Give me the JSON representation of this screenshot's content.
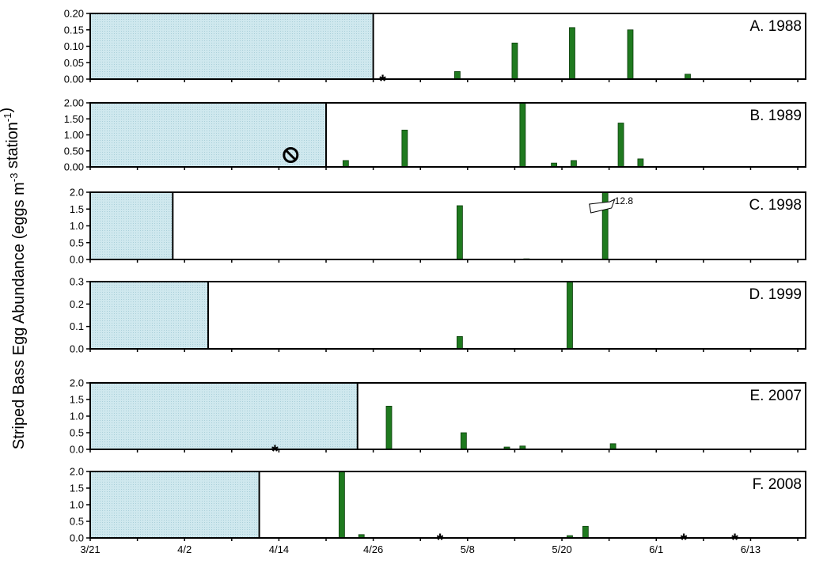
{
  "chart_data": {
    "type": "bar",
    "ylabel": "Striped Bass Egg Abundance (eggs m",
    "ylabel_sup1": "-3",
    "ylabel_mid": " station",
    "ylabel_sup2": "-1",
    "ylabel_end": ")",
    "x_domain_days": [
      0,
      91
    ],
    "x_ticks": [
      {
        "label": "3/21",
        "day": 0
      },
      {
        "label": "4/2",
        "day": 12
      },
      {
        "label": "4/14",
        "day": 24
      },
      {
        "label": "4/26",
        "day": 36
      },
      {
        "label": "5/8",
        "day": 48
      },
      {
        "label": "5/20",
        "day": 60
      },
      {
        "label": "6/1",
        "day": 72
      },
      {
        "label": "6/13",
        "day": 84
      }
    ],
    "colors": {
      "bar": "#1f7a1f",
      "bar_edge": "#0b3d0b",
      "shade": "#cfe8ee",
      "shade_dot": "#a9cfd9",
      "frame": "#000000"
    },
    "panels": [
      {
        "label": "A. 1988",
        "ylim": [
          0,
          0.2
        ],
        "yticks": [
          "0.00",
          "0.05",
          "0.10",
          "0.15",
          "0.20"
        ],
        "shade_until_day": 36,
        "bars": [
          {
            "day": 46.7,
            "value": 0.023
          },
          {
            "day": 54,
            "value": 0.11
          },
          {
            "day": 61.3,
            "value": 0.157
          },
          {
            "day": 68.7,
            "value": 0.15
          },
          {
            "day": 76,
            "value": 0.015
          }
        ],
        "markers": [
          {
            "day": 37.2,
            "symbol": "*"
          }
        ]
      },
      {
        "label": "B. 1989",
        "ylim": [
          0,
          2.0
        ],
        "yticks": [
          "0.00",
          "0.50",
          "1.00",
          "1.50",
          "2.00"
        ],
        "shade_until_day": 30,
        "bars": [
          {
            "day": 32.5,
            "value": 0.2
          },
          {
            "day": 40,
            "value": 1.15
          },
          {
            "day": 55,
            "value": 2.0
          },
          {
            "day": 59,
            "value": 0.12
          },
          {
            "day": 61.5,
            "value": 0.2
          },
          {
            "day": 67.5,
            "value": 1.37
          },
          {
            "day": 70,
            "value": 0.25
          }
        ],
        "markers": [
          {
            "day": 25.5,
            "symbol": "no-sign"
          }
        ]
      },
      {
        "label": "C. 1998",
        "ylim": [
          0,
          2.0
        ],
        "yticks": [
          "0.0",
          "0.5",
          "1.0",
          "1.5",
          "2.0"
        ],
        "shade_until_day": 10.5,
        "bars": [
          {
            "day": 47,
            "value": 1.6
          },
          {
            "day": 55.5,
            "value": 0.02
          },
          {
            "day": 65.5,
            "value": 2.0
          }
        ],
        "markers": [],
        "callout": {
          "day": 65.5,
          "text": "12.8"
        }
      },
      {
        "label": "D. 1999",
        "ylim": [
          0,
          0.3
        ],
        "yticks": [
          "0.0",
          "0.1",
          "0.2",
          "0.3"
        ],
        "shade_until_day": 15,
        "bars": [
          {
            "day": 47,
            "value": 0.055
          },
          {
            "day": 61,
            "value": 0.3
          }
        ],
        "markers": []
      },
      {
        "label": "E. 2007",
        "ylim": [
          0,
          2.0
        ],
        "yticks": [
          "0.0",
          "0.5",
          "1.0",
          "1.5",
          "2.0"
        ],
        "shade_until_day": 34,
        "bars": [
          {
            "day": 38,
            "value": 1.3
          },
          {
            "day": 47.5,
            "value": 0.5
          },
          {
            "day": 53,
            "value": 0.07
          },
          {
            "day": 55,
            "value": 0.1
          },
          {
            "day": 66.5,
            "value": 0.17
          }
        ],
        "markers": [
          {
            "day": 23.5,
            "symbol": "*"
          }
        ]
      },
      {
        "label": "F. 2008",
        "ylim": [
          0,
          2.0
        ],
        "yticks": [
          "0.0",
          "0.5",
          "1.0",
          "1.5",
          "2.0"
        ],
        "shade_until_day": 21.5,
        "bars": [
          {
            "day": 32,
            "value": 2.0
          },
          {
            "day": 34.5,
            "value": 0.1
          },
          {
            "day": 61,
            "value": 0.07
          },
          {
            "day": 63,
            "value": 0.35
          }
        ],
        "markers": [
          {
            "day": 44.5,
            "symbol": "*"
          },
          {
            "day": 75.5,
            "symbol": "*"
          },
          {
            "day": 82,
            "symbol": "*"
          }
        ]
      }
    ]
  }
}
